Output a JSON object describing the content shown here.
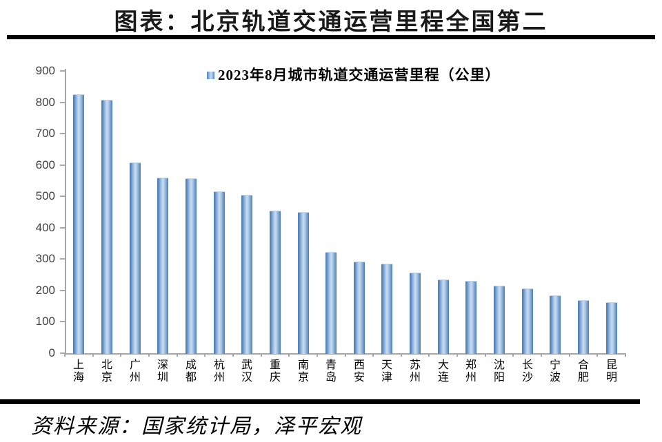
{
  "title": "图表：北京轨道交通运营里程全国第二",
  "legend": {
    "label": "2023年8月城市轨道交通运营里程（公里）"
  },
  "source": "资料来源：国家统计局，泽平宏观",
  "colors": {
    "bar_edge": "#4f81bd",
    "bar_center": "#c8dbf0",
    "axis": "#a6a6a6",
    "rule": "#000000",
    "tick_label": "#404040"
  },
  "chart_data": {
    "type": "bar",
    "title": "图表：北京轨道交通运营里程全国第二",
    "series_name": "2023年8月城市轨道交通运营里程（公里）",
    "categories": [
      "上海",
      "北京",
      "广州",
      "深圳",
      "成都",
      "杭州",
      "武汉",
      "重庆",
      "南京",
      "青岛",
      "西安",
      "天津",
      "苏州",
      "大连",
      "郑州",
      "沈阳",
      "长沙",
      "宁波",
      "合肥",
      "昆明"
    ],
    "values": [
      825,
      807,
      609,
      559,
      557,
      516,
      504,
      455,
      449,
      322,
      292,
      285,
      256,
      235,
      230,
      215,
      207,
      184,
      169,
      162
    ],
    "xlabel": "",
    "ylabel": "",
    "ylim": [
      0,
      900
    ],
    "ytick_interval": 100,
    "yticks": [
      0,
      100,
      200,
      300,
      400,
      500,
      600,
      700,
      800,
      900
    ],
    "grid": false,
    "legend_position": "top-center",
    "source": "资料来源：国家统计局，泽平宏观"
  }
}
